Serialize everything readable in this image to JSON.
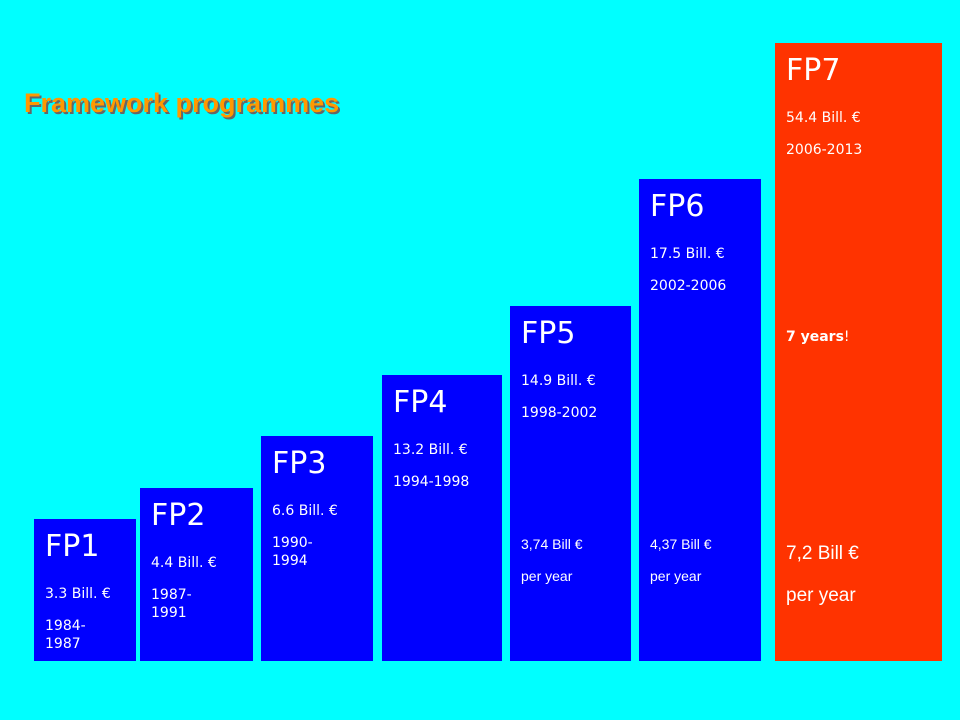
{
  "title": "Framework programmes",
  "colors": {
    "background": "#00ffff",
    "bar": "#0000ff",
    "highlight_bar": "#ff3300",
    "title": "#ff9900"
  },
  "chart_data": {
    "type": "bar",
    "categories": [
      "FP1",
      "FP2",
      "FP3",
      "FP4",
      "FP5",
      "FP6",
      "FP7"
    ],
    "values": [
      3.3,
      4.4,
      6.6,
      13.2,
      14.9,
      17.5,
      54.4
    ],
    "unit": "Bill. €",
    "title": "Framework programmes",
    "bars": [
      {
        "name": "FP1",
        "budget": "3.3 Bill. €",
        "period": "1984-\n1987",
        "value": 3.3
      },
      {
        "name": "FP2",
        "budget": "4.4 Bill. €",
        "period": "1987-\n1991",
        "value": 4.4
      },
      {
        "name": "FP3",
        "budget": "6.6 Bill. €",
        "period": "1990-\n1994",
        "value": 6.6
      },
      {
        "name": "FP4",
        "budget": "13.2 Bill. €",
        "period": "1994-1998",
        "value": 13.2
      },
      {
        "name": "FP5",
        "budget": "14.9 Bill. €",
        "period": "1998-2002",
        "value": 14.9,
        "per_year": "3,74 Bill €\nper year"
      },
      {
        "name": "FP6",
        "budget": "17.5 Bill. €",
        "period": "2002-2006",
        "value": 17.5,
        "per_year": "4,37 Bill €\nper year"
      },
      {
        "name": "FP7",
        "budget": "54.4 Bill. €",
        "period": "2006-2013",
        "value": 54.4,
        "note_bold": "7  years",
        "note_rest": "!",
        "per_year": "7,2 Bill €\nper year"
      }
    ]
  }
}
